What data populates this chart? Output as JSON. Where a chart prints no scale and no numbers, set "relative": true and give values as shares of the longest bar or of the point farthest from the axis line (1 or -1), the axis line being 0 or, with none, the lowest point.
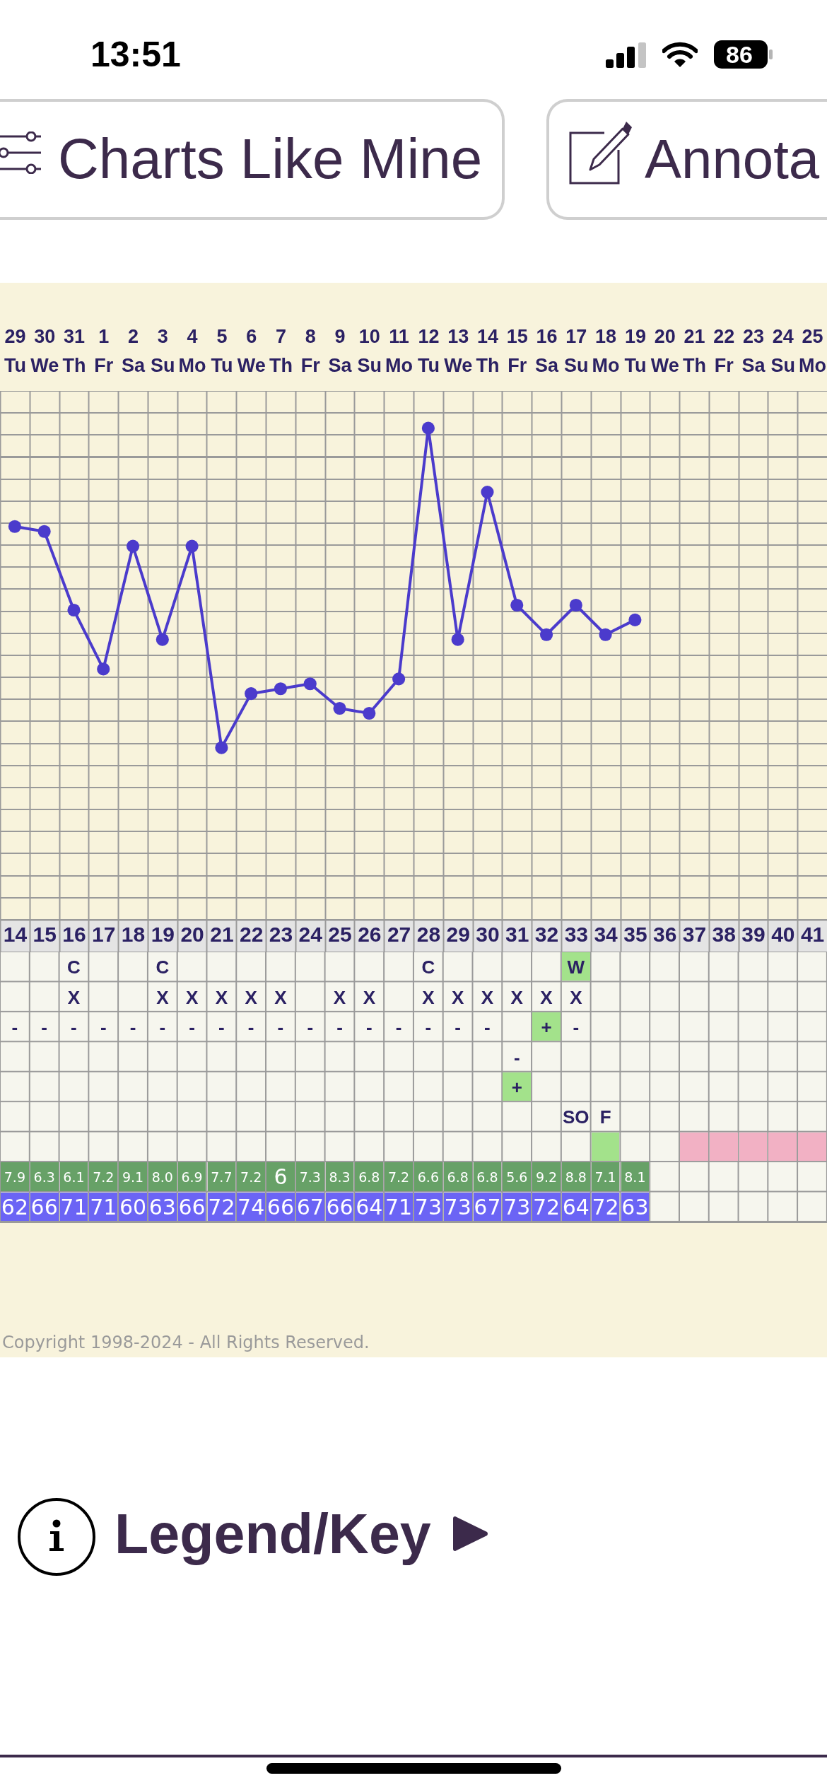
{
  "chart_data": [
    {
      "type": "line",
      "x": [
        14,
        15,
        16,
        17,
        18,
        19,
        20,
        21,
        22,
        23,
        24,
        25,
        26,
        27,
        28,
        29,
        30,
        31,
        32,
        33,
        34,
        35
      ],
      "values": [
        0.8,
        0.79,
        0.63,
        0.51,
        0.76,
        0.57,
        0.76,
        0.35,
        0.46,
        0.47,
        0.48,
        0.43,
        0.42,
        0.49,
        1,
        0.57,
        0.87,
        0.64,
        0.58,
        0.64,
        0.58,
        0.61
      ],
      "color": "#4b3bcc",
      "relative": true,
      "marker": "circle",
      "grid": true,
      "xlim": [
        13.5,
        41.5
      ],
      "xticks": [
        14,
        15,
        16,
        17,
        18,
        19,
        20,
        21,
        22,
        23,
        24,
        25,
        26,
        27,
        28,
        29,
        30,
        31,
        32,
        33,
        34,
        35,
        36,
        37,
        38,
        39,
        40,
        41
      ],
      "x2lim": [
        "2024-10-28T12:00",
        "2024-11-25T12:00"
      ],
      "x2ticks": [
        {
          "value": "2024-10-29",
          "label": "29\nTu"
        },
        {
          "value": "2024-10-30",
          "label": "30\nWe"
        },
        {
          "value": "2024-10-31",
          "label": "31\nTh"
        },
        {
          "value": "2024-11-01",
          "label": "1\nFr"
        },
        {
          "value": "2024-11-02",
          "label": "2\nSa"
        },
        {
          "value": "2024-11-03",
          "label": "3\nSu"
        },
        {
          "value": "2024-11-04",
          "label": "4\nMo"
        },
        {
          "value": "2024-11-05",
          "label": "5\nTu"
        },
        {
          "value": "2024-11-06",
          "label": "6\nWe"
        },
        {
          "value": "2024-11-07",
          "label": "7\nTh"
        },
        {
          "value": "2024-11-08",
          "label": "8\nFr"
        },
        {
          "value": "2024-11-09",
          "label": "9\nSa"
        },
        {
          "value": "2024-11-10",
          "label": "10\nSu"
        },
        {
          "value": "2024-11-11",
          "label": "11\nMo"
        },
        {
          "value": "2024-11-12",
          "label": "12\nTu"
        },
        {
          "value": "2024-11-13",
          "label": "13\nWe"
        },
        {
          "value": "2024-11-14",
          "label": "14\nTh"
        },
        {
          "value": "2024-11-15",
          "label": "15\nFr"
        },
        {
          "value": "2024-11-16",
          "label": "16\nSa"
        },
        {
          "value": "2024-11-17",
          "label": "17\nSu"
        },
        {
          "value": "2024-11-18",
          "label": "18\nMo"
        },
        {
          "value": "2024-11-19",
          "label": "19\nTu"
        },
        {
          "value": "2024-11-20",
          "label": "20\nWe"
        },
        {
          "value": "2024-11-21",
          "label": "21\nTh"
        },
        {
          "value": "2024-11-22",
          "label": "22\nFr"
        },
        {
          "value": "2024-11-23",
          "label": "23\nSa"
        },
        {
          "value": "2024-11-24",
          "label": "24\nSu"
        },
        {
          "value": "2024-11-25",
          "label": "25\nMo"
        }
      ],
      "annotations": [
        "13:51",
        "86",
        "Charts Like Mine",
        "Annota",
        "Copyright 1998-2024 - All Rights Reserved.",
        "Legend/Key"
      ]
    },
    {
      "type": "other",
      "cell_labels": [
        [
          null,
          null,
          "C",
          null,
          null,
          "C",
          null,
          null,
          null,
          null,
          null,
          null,
          null,
          null,
          "C",
          null,
          null,
          null,
          null,
          "W",
          null,
          null,
          null,
          null,
          null,
          null,
          null,
          null
        ],
        [
          null,
          null,
          "X",
          null,
          null,
          "X",
          "X",
          "X",
          "X",
          "X",
          null,
          "X",
          "X",
          null,
          "X",
          "X",
          "X",
          "X",
          "X",
          "X",
          null,
          null,
          null,
          null,
          null,
          null,
          null,
          null
        ],
        [
          "-",
          "-",
          "-",
          "-",
          "-",
          "-",
          "-",
          "-",
          "-",
          "-",
          "-",
          "-",
          "-",
          "-",
          "-",
          "-",
          "-",
          null,
          "+",
          "-",
          null,
          null,
          null,
          null,
          null,
          null,
          null,
          null
        ],
        [
          null,
          null,
          null,
          null,
          null,
          null,
          null,
          null,
          null,
          null,
          null,
          null,
          null,
          null,
          null,
          null,
          null,
          "-",
          null,
          null,
          null,
          null,
          null,
          null,
          null,
          null,
          null,
          null
        ],
        [
          null,
          null,
          null,
          null,
          null,
          null,
          null,
          null,
          null,
          null,
          null,
          null,
          null,
          null,
          null,
          null,
          null,
          "+",
          null,
          null,
          null,
          null,
          null,
          null,
          null,
          null,
          null,
          null
        ],
        [
          null,
          null,
          null,
          null,
          null,
          null,
          null,
          null,
          null,
          null,
          null,
          null,
          null,
          null,
          null,
          null,
          null,
          null,
          null,
          "SO",
          "F",
          null,
          null,
          null,
          null,
          null,
          null,
          null
        ],
        [
          null,
          null,
          null,
          null,
          null,
          null,
          null,
          null,
          null,
          null,
          null,
          null,
          null,
          null,
          null,
          null,
          null,
          null,
          null,
          null,
          null,
          null,
          null,
          null,
          null,
          null,
          null,
          null
        ],
        [
          "7.9",
          "6.3",
          "6.1",
          "7.2",
          "9.1",
          "8.0",
          "6.9",
          "7.7",
          "7.2",
          "6",
          "7.3",
          "8.3",
          "6.8",
          "7.2",
          "6.6",
          "6.8",
          "6.8",
          "5.6",
          "9.2",
          "8.8",
          "7.1",
          "8.1",
          null,
          null,
          null,
          null,
          null,
          null
        ],
        [
          "62",
          "66",
          "71",
          "71",
          "60",
          "63",
          "66",
          "72",
          "74",
          "66",
          "67",
          "66",
          "64",
          "71",
          "73",
          "73",
          "67",
          "73",
          "72",
          "64",
          "72",
          "63",
          null,
          null,
          null,
          null,
          null,
          null
        ]
      ],
      "colors": [
        [
          null,
          null,
          null,
          null,
          null,
          null,
          null,
          null,
          null,
          null,
          null,
          null,
          null,
          null,
          null,
          null,
          null,
          null,
          null,
          "#a3e28b",
          null,
          null,
          null,
          null,
          null,
          null,
          null,
          null
        ],
        [
          null,
          null,
          null,
          null,
          null,
          null,
          null,
          null,
          null,
          null,
          null,
          null,
          null,
          null,
          null,
          null,
          null,
          null,
          null,
          null,
          null,
          null,
          null,
          null,
          null,
          null,
          null,
          null
        ],
        [
          null,
          null,
          null,
          null,
          null,
          null,
          null,
          null,
          null,
          null,
          null,
          null,
          null,
          null,
          null,
          null,
          null,
          null,
          "#a3e28b",
          null,
          null,
          null,
          null,
          null,
          null,
          null,
          null,
          null
        ],
        [
          null,
          null,
          null,
          null,
          null,
          null,
          null,
          null,
          null,
          null,
          null,
          null,
          null,
          null,
          null,
          null,
          null,
          null,
          null,
          null,
          null,
          null,
          null,
          null,
          null,
          null,
          null,
          null
        ],
        [
          null,
          null,
          null,
          null,
          null,
          null,
          null,
          null,
          null,
          null,
          null,
          null,
          null,
          null,
          null,
          null,
          null,
          "#a3e28b",
          null,
          null,
          null,
          null,
          null,
          null,
          null,
          null,
          null,
          null
        ],
        [
          null,
          null,
          null,
          null,
          null,
          null,
          null,
          null,
          null,
          null,
          null,
          null,
          null,
          null,
          null,
          null,
          null,
          null,
          null,
          null,
          null,
          null,
          null,
          null,
          null,
          null,
          null,
          null
        ],
        [
          null,
          null,
          null,
          null,
          null,
          null,
          null,
          null,
          null,
          null,
          null,
          null,
          null,
          null,
          null,
          null,
          null,
          null,
          null,
          null,
          "#a3e28b",
          null,
          null,
          "#f2b1c4",
          "#f2b1c4",
          "#f2b1c4",
          "#f2b1c4",
          "#f2b1c4"
        ],
        [
          "#67a167",
          "#67a167",
          "#67a167",
          "#67a167",
          "#67a167",
          "#67a167",
          "#67a167",
          "#67a167",
          "#67a167",
          "#67a167",
          "#67a167",
          "#67a167",
          "#67a167",
          "#67a167",
          "#67a167",
          "#67a167",
          "#67a167",
          "#67a167",
          "#67a167",
          "#67a167",
          "#67a167",
          "#67a167",
          null,
          null,
          null,
          null,
          null,
          null
        ],
        [
          "#6b64f5",
          "#6b64f5",
          "#6b64f5",
          "#6b64f5",
          "#6b64f5",
          "#6b64f5",
          "#6b64f5",
          "#6b64f5",
          "#6b64f5",
          "#6b64f5",
          "#6b64f5",
          "#6b64f5",
          "#6b64f5",
          "#6b64f5",
          "#6b64f5",
          "#6b64f5",
          "#6b64f5",
          "#6b64f5",
          "#6b64f5",
          "#6b64f5",
          "#6b64f5",
          "#6b64f5",
          null,
          null,
          null,
          null,
          null,
          null
        ]
      ]
    }
  ]
}
